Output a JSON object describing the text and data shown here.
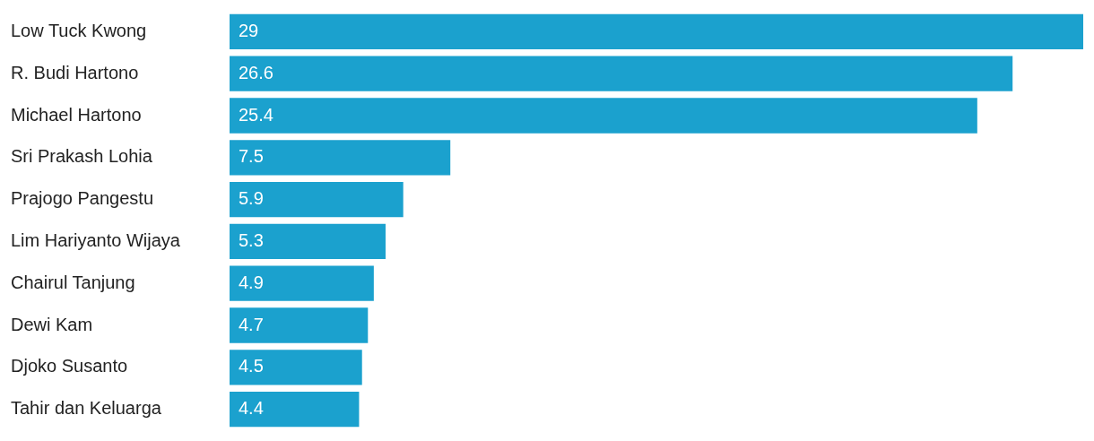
{
  "chart_data": {
    "type": "bar",
    "orientation": "horizontal",
    "categories": [
      "Low Tuck Kwong",
      "R. Budi Hartono",
      "Michael Hartono",
      "Sri Prakash Lohia",
      "Prajogo Pangestu",
      "Lim Hariyanto Wijaya",
      "Chairul Tanjung",
      "Dewi Kam",
      "Djoko Susanto",
      "Tahir dan Keluarga"
    ],
    "values": [
      29,
      26.6,
      25.4,
      7.5,
      5.9,
      5.3,
      4.9,
      4.7,
      4.5,
      4.4
    ],
    "color": "#1ba1ce",
    "data_labels": true
  }
}
